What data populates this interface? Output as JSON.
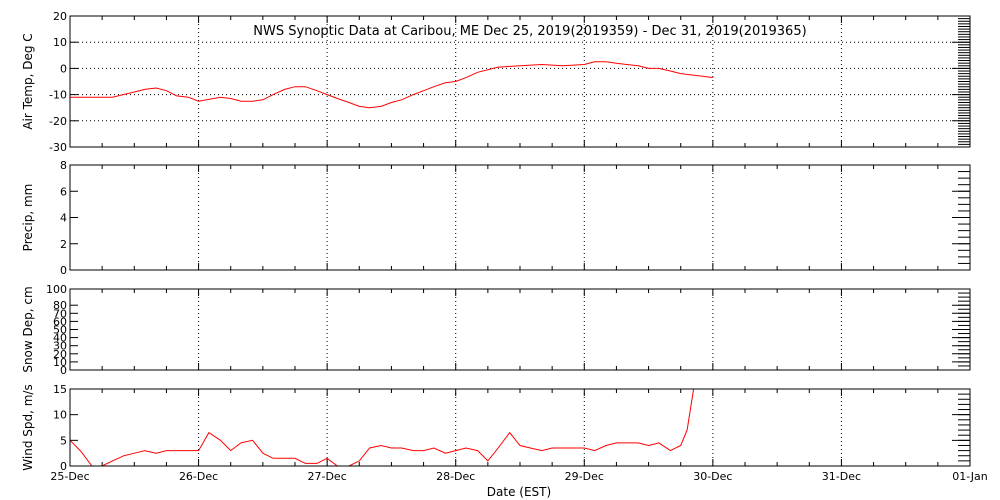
{
  "chart_data": {
    "type": "line",
    "title": "NWS Synoptic Data at Caribou, ME   Dec 25, 2019(2019359) - Dec 31, 2019(2019365)",
    "xlabel": "Date (EST)",
    "xlim": [
      "2019-12-25",
      "2020-01-01"
    ],
    "x_tick_labels": [
      "25-Dec",
      "26-Dec",
      "27-Dec",
      "28-Dec",
      "29-Dec",
      "30-Dec",
      "31-Dec",
      "01-Jan"
    ],
    "grid": true,
    "series_color": "#ff0000",
    "panels": [
      {
        "ylabel": "Air Temp, Deg C",
        "ylim": [
          -30,
          20
        ],
        "y_ticks": [
          20,
          10,
          0,
          -10,
          -20,
          -30
        ],
        "y_tick_labels": [
          "20",
          "10",
          "0",
          "-10",
          "-20",
          "-30"
        ],
        "series": [
          {
            "x": [
              0,
              0.17,
              0.33,
              0.5,
              0.58,
              0.67,
              0.75,
              0.83,
              0.92,
              1.0,
              1.17,
              1.25,
              1.33,
              1.42,
              1.5,
              1.58,
              1.67,
              1.75,
              1.83,
              1.92,
              2.0,
              2.08,
              2.17,
              2.25,
              2.33,
              2.42,
              2.5,
              2.58,
              2.67,
              2.75,
              2.83,
              2.92,
              3.0,
              3.08,
              3.17,
              3.33,
              3.5,
              3.67,
              3.83,
              4.0,
              4.08,
              4.17,
              4.25,
              4.33,
              4.42,
              4.5,
              4.58,
              4.67,
              4.75,
              4.83,
              4.92,
              5.0
            ],
            "y": [
              -11,
              -11,
              -11,
              -9,
              -8,
              -7.5,
              -8.5,
              -10.5,
              -11,
              -12.5,
              -11,
              -11.5,
              -12.5,
              -12.5,
              -12,
              -10,
              -8,
              -7,
              -7,
              -8.5,
              -10,
              -11.5,
              -13,
              -14.5,
              -15,
              -14.5,
              -13,
              -12,
              -10,
              -8.5,
              -7,
              -5.5,
              -5,
              -3.5,
              -1.5,
              0.5,
              1,
              1.5,
              1,
              1.5,
              2.5,
              2.5,
              2,
              1.5,
              1,
              0,
              0,
              -1,
              -2,
              -2.5,
              -3,
              -3.5
            ]
          }
        ]
      },
      {
        "ylabel": "Precip, mm",
        "ylim": [
          0,
          8
        ],
        "y_ticks": [
          8,
          6,
          4,
          2,
          0
        ],
        "y_tick_labels": [
          "8",
          "6",
          "4",
          "2",
          "0"
        ],
        "series": []
      },
      {
        "ylabel": "Snow Dep, cm",
        "ylim": [
          0,
          100
        ],
        "y_ticks": [
          100,
          80,
          70,
          60,
          50,
          40,
          30,
          20,
          10,
          0
        ],
        "y_tick_labels": [
          "100",
          "80",
          "70",
          "60",
          "50",
          "40",
          "30",
          "20",
          "10",
          "0"
        ],
        "series": []
      },
      {
        "ylabel": "Wind Spd, m/s",
        "ylim": [
          0,
          15
        ],
        "y_ticks": [
          15,
          10,
          5,
          0
        ],
        "y_tick_labels": [
          "15",
          "10",
          "5",
          "0"
        ],
        "series": [
          {
            "x": [
              0,
              0.08,
              0.17,
              0.25,
              0.33,
              0.42,
              0.5,
              0.58,
              0.67,
              0.75,
              0.83,
              0.92,
              1.0,
              1.08,
              1.17,
              1.25,
              1.33,
              1.42,
              1.5,
              1.58,
              1.67,
              1.75,
              1.83,
              1.92,
              2.0,
              2.08,
              2.17,
              2.25,
              2.33,
              2.42,
              2.5,
              2.58,
              2.67,
              2.75,
              2.83,
              2.92,
              3.0,
              3.08,
              3.17,
              3.25,
              3.33,
              3.42,
              3.5,
              3.58,
              3.67,
              3.75,
              3.83,
              3.92,
              4.0,
              4.08,
              4.17,
              4.25,
              4.33,
              4.42,
              4.5,
              4.58,
              4.67,
              4.75,
              4.8,
              4.85
            ],
            "y": [
              5,
              3,
              0,
              0,
              1,
              2,
              2.5,
              3,
              2.5,
              3,
              3,
              3,
              3,
              6.5,
              5,
              3,
              4.5,
              5,
              2.5,
              1.5,
              1.5,
              1.5,
              0.5,
              0.5,
              1.5,
              0,
              0,
              1,
              3.5,
              4,
              3.5,
              3.5,
              3,
              3,
              3.5,
              2.5,
              3,
              3.5,
              3,
              1,
              3.5,
              6.5,
              4,
              3.5,
              3,
              3.5,
              3.5,
              3.5,
              3.5,
              3,
              4,
              4.5,
              4.5,
              4.5,
              4,
              4.5,
              3,
              4,
              7,
              15
            ]
          }
        ]
      }
    ]
  }
}
